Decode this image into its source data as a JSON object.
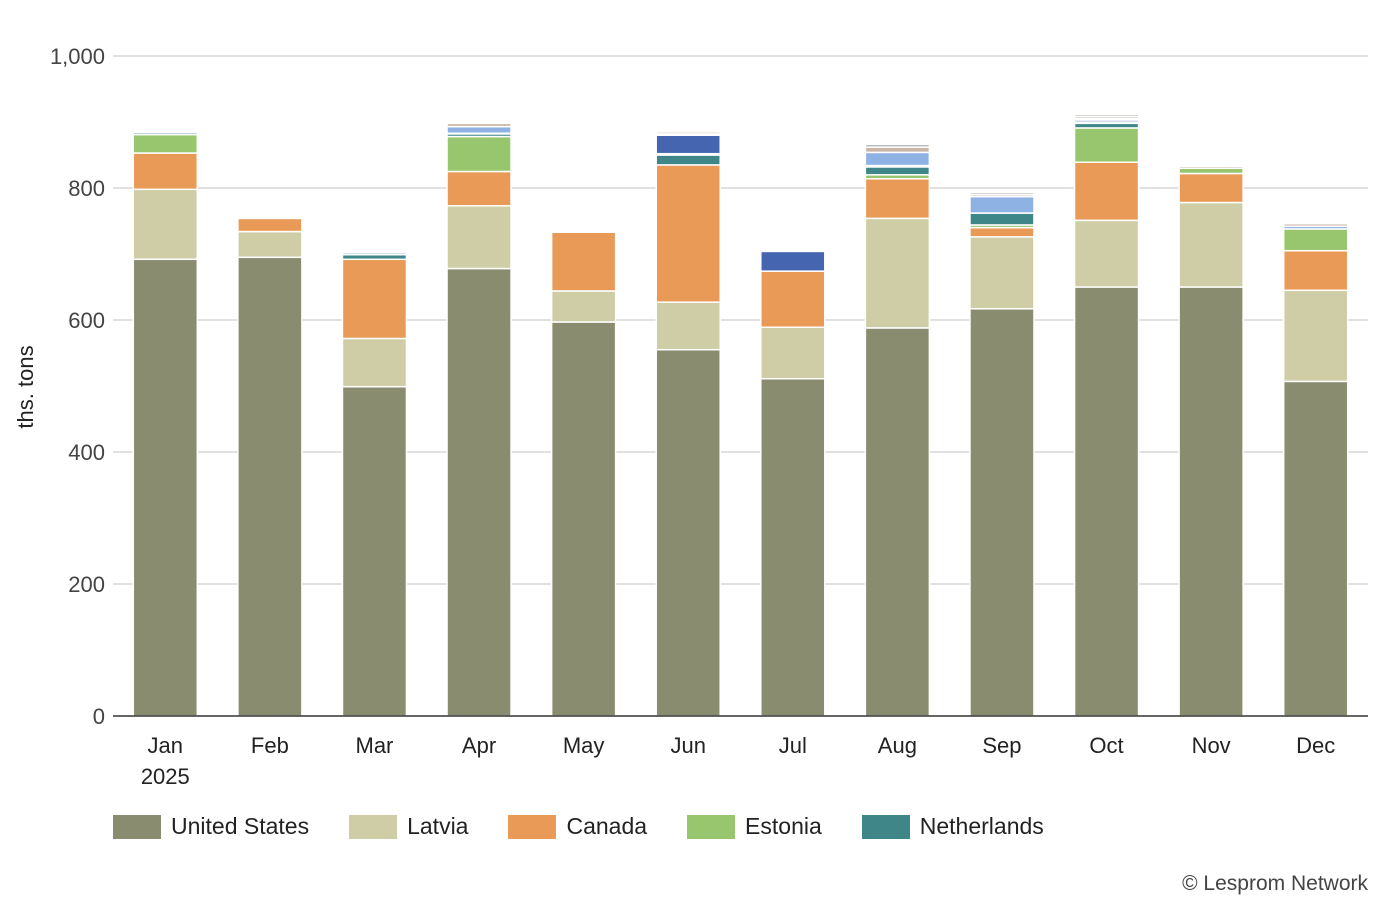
{
  "chart_data": {
    "type": "bar",
    "stacked": true,
    "ylabel": "ths. tons",
    "ylim": [
      0,
      1000
    ],
    "yticks": [
      0,
      200,
      400,
      600,
      800,
      1000
    ],
    "ytick_labels": [
      "0",
      "200",
      "400",
      "600",
      "800",
      "1,000"
    ],
    "grid": true,
    "legend_position": "bottom-left",
    "categories": [
      "Jan",
      "Feb",
      "Mar",
      "Apr",
      "May",
      "Jun",
      "Jul",
      "Aug",
      "Sep",
      "Oct",
      "Nov",
      "Dec"
    ],
    "category_sublabels": [
      "2025",
      "",
      "",
      "",
      "",
      "",
      "",
      "",
      "",
      "",
      "",
      ""
    ],
    "series": [
      {
        "name": "United States",
        "color": "#898c6e",
        "values": [
          692,
          695,
          499,
          678,
          597,
          555,
          511,
          588,
          617,
          650,
          650,
          507
        ]
      },
      {
        "name": "Latvia",
        "color": "#cecda5",
        "values": [
          106,
          39,
          73,
          95,
          47,
          72,
          78,
          166,
          109,
          101,
          128,
          138
        ]
      },
      {
        "name": "Canada",
        "color": "#e99a57",
        "values": [
          55,
          20,
          120,
          52,
          89,
          208,
          85,
          60,
          14,
          88,
          44,
          60
        ]
      },
      {
        "name": "Estonia",
        "color": "#97c66e",
        "values": [
          28,
          0,
          0,
          53,
          0,
          0,
          0,
          6,
          4,
          52,
          8,
          33
        ]
      },
      {
        "name": "Netherlands",
        "color": "#3f8688",
        "values": [
          3,
          0,
          7,
          4,
          0,
          15,
          0,
          12,
          18,
          7,
          0,
          0
        ]
      },
      {
        "color": "#5b7fd4",
        "values": [
          1,
          0,
          0,
          1,
          0,
          2,
          0,
          2,
          0,
          2,
          0,
          0
        ]
      },
      {
        "color": "#4565b0",
        "values": [
          0,
          0,
          0,
          0,
          0,
          28,
          30,
          0,
          0,
          3,
          0,
          0
        ]
      },
      {
        "color": "#8eb2e3",
        "values": [
          2,
          2,
          3,
          10,
          2,
          2,
          0,
          20,
          25,
          2,
          0,
          4
        ]
      },
      {
        "color": "#c9b6a4",
        "values": [
          2,
          2,
          2,
          5,
          2,
          3,
          2,
          8,
          3,
          3,
          3,
          4
        ]
      },
      {
        "color": "#a8a8a8",
        "values": [
          2,
          2,
          2,
          2,
          2,
          2,
          2,
          4,
          3,
          3,
          2,
          2
        ]
      }
    ]
  },
  "credit": "© Lesprom Network"
}
